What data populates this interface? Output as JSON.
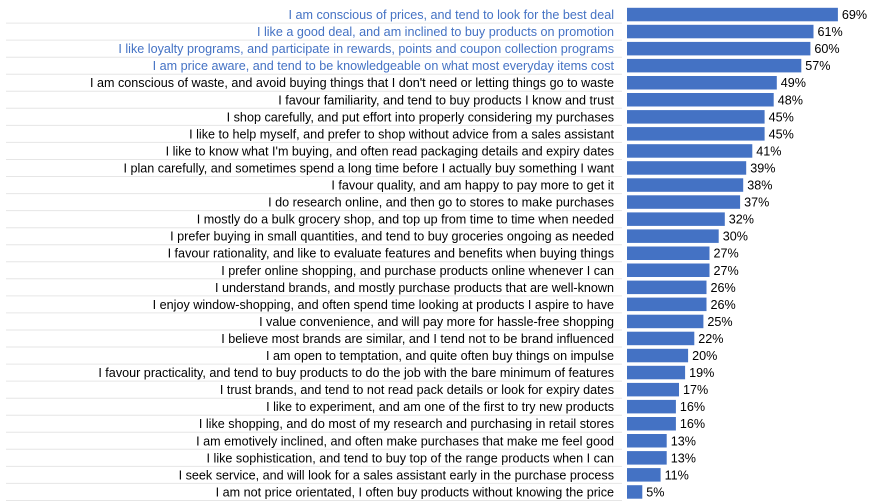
{
  "chart_data": {
    "type": "bar",
    "orientation": "horizontal",
    "title": "",
    "xlabel": "",
    "ylabel": "",
    "xlim": [
      0,
      70
    ],
    "grid": false,
    "legend": "none",
    "value_suffix": "%",
    "colors": {
      "bar": "#4472c4",
      "highlight_label": "#4472c4",
      "label": "#000000",
      "row_divider": "#e6e6e6"
    },
    "categories": [
      "I am conscious of prices, and tend to look for the best deal",
      "I like a good deal, and am inclined to buy products on promotion",
      "I like loyalty programs, and participate in rewards, points and coupon collection programs",
      "I am price aware, and tend to be knowledgeable on what most everyday items cost",
      "I am conscious of waste, and avoid buying things that I don't need or letting things go to waste",
      "I favour familiarity, and tend to buy products I know and trust",
      "I shop carefully, and put effort into properly considering my purchases",
      "I like to help myself, and prefer to shop without advice from a sales assistant",
      "I like to know what I'm buying, and often read packaging details and expiry dates",
      "I plan carefully, and sometimes spend a long time before I actually buy something I want",
      "I favour quality, and am happy to pay more to get it",
      "I do research online, and then go to stores to make purchases",
      "I mostly do a bulk grocery shop, and top up from time to time when needed",
      "I prefer buying in small quantities, and tend to buy groceries ongoing as needed",
      "I favour rationality, and like to evaluate features and benefits when buying things",
      "I prefer online shopping, and purchase products online whenever I can",
      "I understand brands, and mostly purchase products that are well-known",
      "I enjoy window-shopping, and often spend time looking at products I aspire to have",
      "I value convenience, and will pay more for hassle-free shopping",
      "I believe most brands are similar, and I tend not to be brand influenced",
      "I am open to temptation, and quite often buy things on impulse",
      "I favour practicality, and tend to buy products to do the job with the bare minimum of features",
      "I trust brands, and tend to not read pack details or look for expiry dates",
      "I like to experiment, and am one of the first to try new products",
      "I like shopping, and do most of my research and purchasing in retail stores",
      "I am emotively inclined, and often make purchases that make me feel good",
      "I like sophistication, and tend to buy top of the range products when I can",
      "I seek service, and will look for a sales assistant early in the purchase process",
      "I am not price orientated, I often buy products without knowing the price"
    ],
    "values": [
      69,
      61,
      60,
      57,
      49,
      48,
      45,
      45,
      41,
      39,
      38,
      37,
      32,
      30,
      27,
      27,
      26,
      26,
      25,
      22,
      20,
      19,
      17,
      16,
      16,
      13,
      13,
      11,
      5
    ],
    "highlighted_categories": [
      0,
      1,
      2,
      3
    ]
  }
}
